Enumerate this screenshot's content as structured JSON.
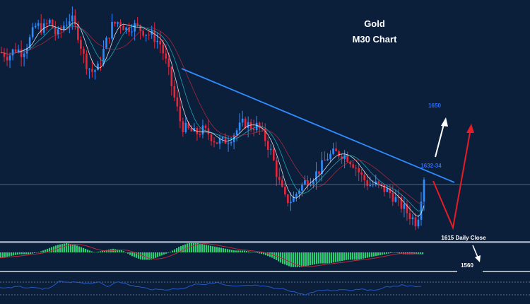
{
  "chart_data": {
    "type": "candlestick",
    "title": "Gold",
    "subtitle": "M30 Chart",
    "instrument": "Gold",
    "timeframe": "M30",
    "ylim": [
      1607,
      1677
    ],
    "price_path": [
      1664,
      1663,
      1665,
      1664,
      1667,
      1671,
      1670,
      1672,
      1668,
      1671,
      1673,
      1669,
      1662,
      1659,
      1660,
      1666,
      1671,
      1672,
      1670,
      1671,
      1670,
      1669,
      1668,
      1666,
      1660,
      1652,
      1645,
      1644,
      1643,
      1644,
      1643,
      1641,
      1641,
      1642,
      1644,
      1646,
      1645,
      1645,
      1642,
      1638,
      1631,
      1626,
      1626,
      1629,
      1631,
      1632,
      1634,
      1637,
      1638,
      1638,
      1637,
      1635,
      1632,
      1630,
      1630,
      1629,
      1628,
      1626,
      1624,
      1622,
      1620,
      1632
    ],
    "trendline": {
      "from": 1661,
      "to": 1631
    },
    "horizontal_level": 1630,
    "annotations": {
      "target_high": "1650",
      "resistance": "1632-34",
      "daily_close": "1615 Daily Close",
      "target_low": "1560"
    },
    "macd": {
      "values": [
        -3,
        -2,
        -1,
        -1,
        0,
        2,
        4,
        5,
        4,
        2,
        0,
        1,
        2,
        1,
        -2,
        -4,
        -4,
        -2,
        0,
        3,
        5,
        5,
        4,
        3,
        2,
        1,
        1,
        0,
        -1,
        -3,
        -6,
        -8,
        -8,
        -7,
        -6,
        -6,
        -5,
        -4,
        -4,
        -3,
        -2,
        -1,
        0,
        -1,
        -1,
        -1
      ]
    },
    "rsi": {
      "levels": [
        70,
        30
      ],
      "values": [
        52,
        53,
        55,
        52,
        50,
        48,
        72,
        68,
        70,
        66,
        70,
        55,
        74,
        62,
        56,
        50,
        46,
        47,
        48,
        52,
        66,
        62,
        70,
        60,
        56,
        58,
        60,
        56,
        50,
        48,
        40,
        30,
        38,
        45,
        44,
        47,
        45,
        50,
        42,
        52,
        56,
        60,
        56,
        58
      ]
    }
  },
  "colors": {
    "background": "#0b1f3b",
    "bull": "#2f8cff",
    "bear": "#e8263a",
    "trendline": "#2f8cff",
    "arrow_up_primary": "#ffffff",
    "arrow_scenario": "#e81c24",
    "macd_hist": "#2ecc71",
    "macd_signal": "#c0283a",
    "rsi_line": "#2358c8"
  }
}
